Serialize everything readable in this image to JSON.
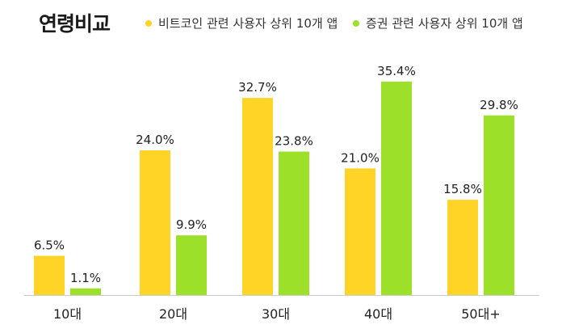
{
  "chart_data": {
    "type": "bar",
    "title": "연령비교",
    "categories": [
      "10대",
      "20대",
      "30대",
      "40대",
      "50대+"
    ],
    "series": [
      {
        "name": "비트코인 관련 사용자 상위 10개 앱",
        "color": "#FFD426",
        "values": [
          6.5,
          24.0,
          32.7,
          21.0,
          15.8
        ],
        "labels": [
          "6.5%",
          "24.0%",
          "32.7%",
          "21.0%",
          "15.8%"
        ]
      },
      {
        "name": "증권 관련 사용자 상위 10개 앱",
        "color": "#9DE02A",
        "values": [
          1.1,
          9.9,
          23.8,
          35.4,
          29.8
        ],
        "labels": [
          "1.1%",
          "9.9%",
          "23.8%",
          "35.4%",
          "29.8%"
        ]
      }
    ],
    "ylim": [
      0,
      35.4
    ],
    "grid": false,
    "legend": "top"
  }
}
